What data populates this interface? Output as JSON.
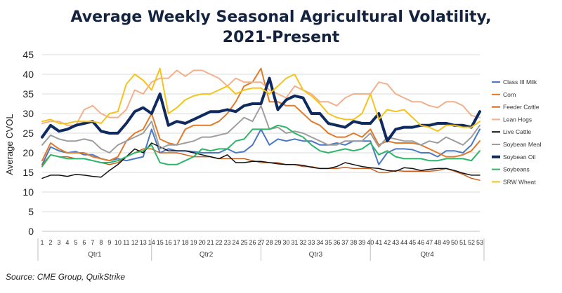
{
  "chart_data": {
    "type": "line",
    "title_line1": "Average Weekly Seasonal Agricultural Volatility,",
    "title_line2": "2021-Present",
    "ylabel": "Average CVOL",
    "xlabel": "",
    "ylim": [
      0,
      45
    ],
    "yticks": [
      0,
      5,
      10,
      15,
      20,
      25,
      30,
      35,
      40,
      45
    ],
    "grid": true,
    "legend_position": "right",
    "source": "Source: CME Group, QuikStrike",
    "x": [
      1,
      2,
      3,
      4,
      5,
      6,
      7,
      8,
      9,
      10,
      11,
      12,
      13,
      14,
      15,
      16,
      17,
      18,
      19,
      20,
      21,
      22,
      23,
      24,
      25,
      26,
      27,
      28,
      29,
      30,
      31,
      32,
      33,
      34,
      35,
      36,
      37,
      38,
      39,
      40,
      41,
      42,
      43,
      44,
      45,
      46,
      47,
      48,
      49,
      50,
      51,
      52,
      53
    ],
    "quarters": [
      {
        "label": "Qtr1",
        "start": 1,
        "end": 14
      },
      {
        "label": "Qtr2",
        "start": 14,
        "end": 27
      },
      {
        "label": "Qtr3",
        "start": 27,
        "end": 40
      },
      {
        "label": "Qtr4",
        "start": 40,
        "end": 53
      }
    ],
    "series": [
      {
        "name": "Class III Milk",
        "color": "#4a78c2",
        "width": 2,
        "values": [
          17,
          21.5,
          20.5,
          20,
          20.3,
          19.5,
          19.5,
          18.5,
          18,
          18.5,
          18,
          18.5,
          19,
          26,
          20,
          21,
          20.5,
          20.5,
          20.3,
          20,
          20,
          20,
          21,
          20,
          20.3,
          22,
          26,
          22,
          23.5,
          23,
          23.5,
          23,
          23,
          22,
          22,
          22.5,
          22,
          23,
          23,
          23,
          17,
          20,
          21,
          21,
          20.8,
          20,
          20,
          19,
          20.5,
          20.5,
          20,
          22,
          26
        ]
      },
      {
        "name": "Corn",
        "color": "#e07b2c",
        "width": 2,
        "values": [
          18,
          22.5,
          21,
          20,
          20,
          20,
          19,
          18.5,
          18,
          19,
          23,
          25,
          26,
          30,
          23.5,
          22.5,
          22,
          26,
          27,
          27,
          27,
          28,
          30,
          33,
          37,
          38,
          41.5,
          33,
          33,
          32,
          32,
          30,
          28,
          27,
          25,
          24,
          24,
          25,
          24,
          26,
          22,
          23,
          22.5,
          22.5,
          22.5,
          22,
          21,
          20,
          19,
          19,
          19.5,
          20.5,
          23
        ]
      },
      {
        "name": "Feeder Cattle",
        "color": "#c95f1f",
        "width": 1.5,
        "values": [
          17,
          19.5,
          19,
          19,
          18.5,
          18.5,
          18,
          17.5,
          17,
          17.5,
          19,
          20,
          21,
          21,
          20,
          20,
          20,
          19.5,
          19,
          19,
          19,
          18.5,
          18.5,
          18.5,
          18.5,
          18,
          17.5,
          17.5,
          17.5,
          17,
          17,
          16.5,
          16.5,
          16,
          16,
          16,
          16.3,
          16,
          16,
          16,
          15,
          15,
          15.5,
          15.3,
          15.3,
          15.3,
          15.3,
          15.5,
          16,
          15.3,
          14.5,
          13.5,
          13
        ]
      },
      {
        "name": "Lean Hogs",
        "color": "#f2b08c",
        "width": 2,
        "values": [
          27.5,
          28,
          28,
          27,
          27,
          31,
          32,
          30,
          29,
          29,
          31,
          36,
          35,
          38,
          39,
          39,
          41,
          39.5,
          41,
          41,
          40,
          39,
          37,
          39,
          38,
          38,
          38,
          36,
          35,
          34,
          37,
          36,
          35,
          33,
          33,
          32,
          34,
          35,
          35,
          35,
          38,
          37.5,
          35,
          34,
          33,
          33,
          32,
          31.5,
          33,
          33,
          32,
          29.5,
          29
        ]
      },
      {
        "name": "Live Cattle",
        "color": "#111111",
        "width": 1.5,
        "values": [
          13.5,
          14.3,
          14.3,
          14,
          14.5,
          14.3,
          14,
          13.8,
          15.5,
          17,
          19,
          21,
          20,
          22.5,
          21.5,
          20.5,
          20.5,
          20.5,
          20,
          19.5,
          19,
          18.5,
          19.5,
          17.5,
          17.5,
          17.8,
          17.8,
          17.5,
          17.2,
          17,
          17,
          16.8,
          16.3,
          16,
          16,
          16.5,
          17.5,
          17,
          16.5,
          16.2,
          16,
          15.5,
          15.3,
          16.2,
          16,
          15.5,
          15.8,
          16,
          16,
          15.5,
          14.8,
          14.3,
          14.3
        ]
      },
      {
        "name": "Soybean Meal",
        "color": "#9e9e9e",
        "width": 2,
        "values": [
          22,
          24.5,
          23.5,
          23,
          23,
          23.5,
          23,
          21,
          20,
          22,
          23,
          24,
          25,
          28,
          21,
          22,
          22,
          22.5,
          23,
          24,
          24,
          24.5,
          25,
          27,
          29,
          28,
          32,
          26,
          26.5,
          25,
          25.5,
          25,
          24,
          23,
          22,
          22,
          23,
          23,
          23,
          25,
          21.5,
          24,
          23.5,
          23,
          23,
          22,
          23,
          22.5,
          24,
          23,
          22,
          24,
          27
        ]
      },
      {
        "name": "Soybean Oil",
        "color": "#0f2a5e",
        "width": 4,
        "values": [
          24,
          27,
          25.5,
          26,
          27,
          27.5,
          28,
          25.5,
          25,
          25,
          27.5,
          30.5,
          31.5,
          30,
          35,
          27,
          28,
          27.5,
          28.5,
          29.5,
          30.5,
          30.5,
          31,
          30.5,
          32,
          32.5,
          32.5,
          39,
          31,
          33.5,
          34.5,
          34,
          30,
          30,
          27.5,
          27,
          26.5,
          28,
          27.5,
          27.5,
          30,
          23,
          26,
          26.5,
          26.5,
          27,
          27,
          27.5,
          27.5,
          27,
          27,
          26.5,
          30.5
        ]
      },
      {
        "name": "Soybeans",
        "color": "#2eb56a",
        "width": 2,
        "values": [
          16.5,
          19.5,
          19,
          18.5,
          18.5,
          18.5,
          18,
          17.5,
          17.5,
          18,
          19,
          20,
          20.5,
          22,
          17.5,
          17,
          17,
          18,
          19,
          21,
          20.5,
          21,
          21,
          23,
          23.5,
          26,
          26,
          26,
          27,
          26.5,
          25,
          24,
          22,
          20.5,
          20,
          20.5,
          21,
          20.5,
          21,
          22.5,
          19.5,
          20.5,
          19,
          18.5,
          18.5,
          18.5,
          18,
          18,
          18.5,
          18.5,
          18.5,
          18,
          20.5
        ]
      },
      {
        "name": "SRW Wheat",
        "color": "#f5c31b",
        "width": 2,
        "values": [
          28,
          28.5,
          27.5,
          27.5,
          28,
          28,
          28,
          27.5,
          30,
          30.5,
          37.5,
          40,
          38.5,
          36,
          41.5,
          30,
          31.5,
          33.5,
          34.5,
          35,
          35,
          36,
          37,
          35,
          36,
          36.5,
          36.5,
          35,
          37,
          39,
          40,
          36,
          34.5,
          32.5,
          30,
          29,
          28.5,
          28.5,
          30,
          35,
          28.5,
          31,
          30.5,
          31,
          29,
          27,
          26.5,
          25.5,
          27,
          27,
          26.5,
          26.5,
          28
        ]
      }
    ]
  }
}
